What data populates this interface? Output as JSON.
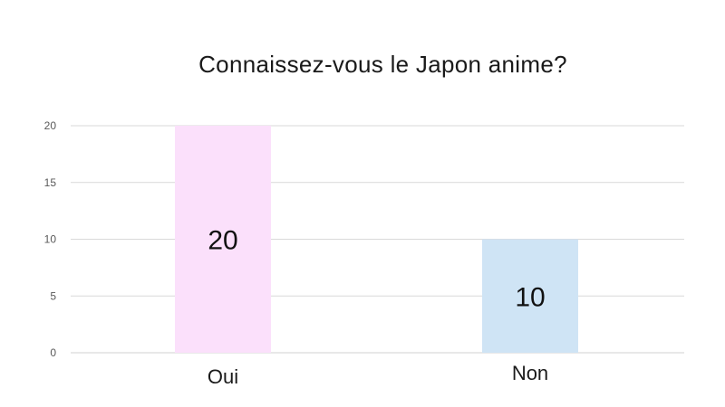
{
  "chart_data": {
    "type": "bar",
    "title": "Connaissez-vous le Japon anime?",
    "categories": [
      "Oui",
      "Non"
    ],
    "values": [
      20,
      10
    ],
    "data_labels": [
      "20",
      "10"
    ],
    "bar_colors": [
      "#fbe0fb",
      "#cfe4f5"
    ],
    "yticks": [
      "0",
      "5",
      "10",
      "15",
      "20"
    ],
    "ylim": [
      0,
      20
    ],
    "ytick_values": [
      0,
      5,
      10,
      15,
      20
    ],
    "grid": true,
    "legend": "none",
    "xlabel": "",
    "ylabel": ""
  },
  "colors": {
    "gridline": "#d9d9d9",
    "axis": "#d9d9d9"
  }
}
